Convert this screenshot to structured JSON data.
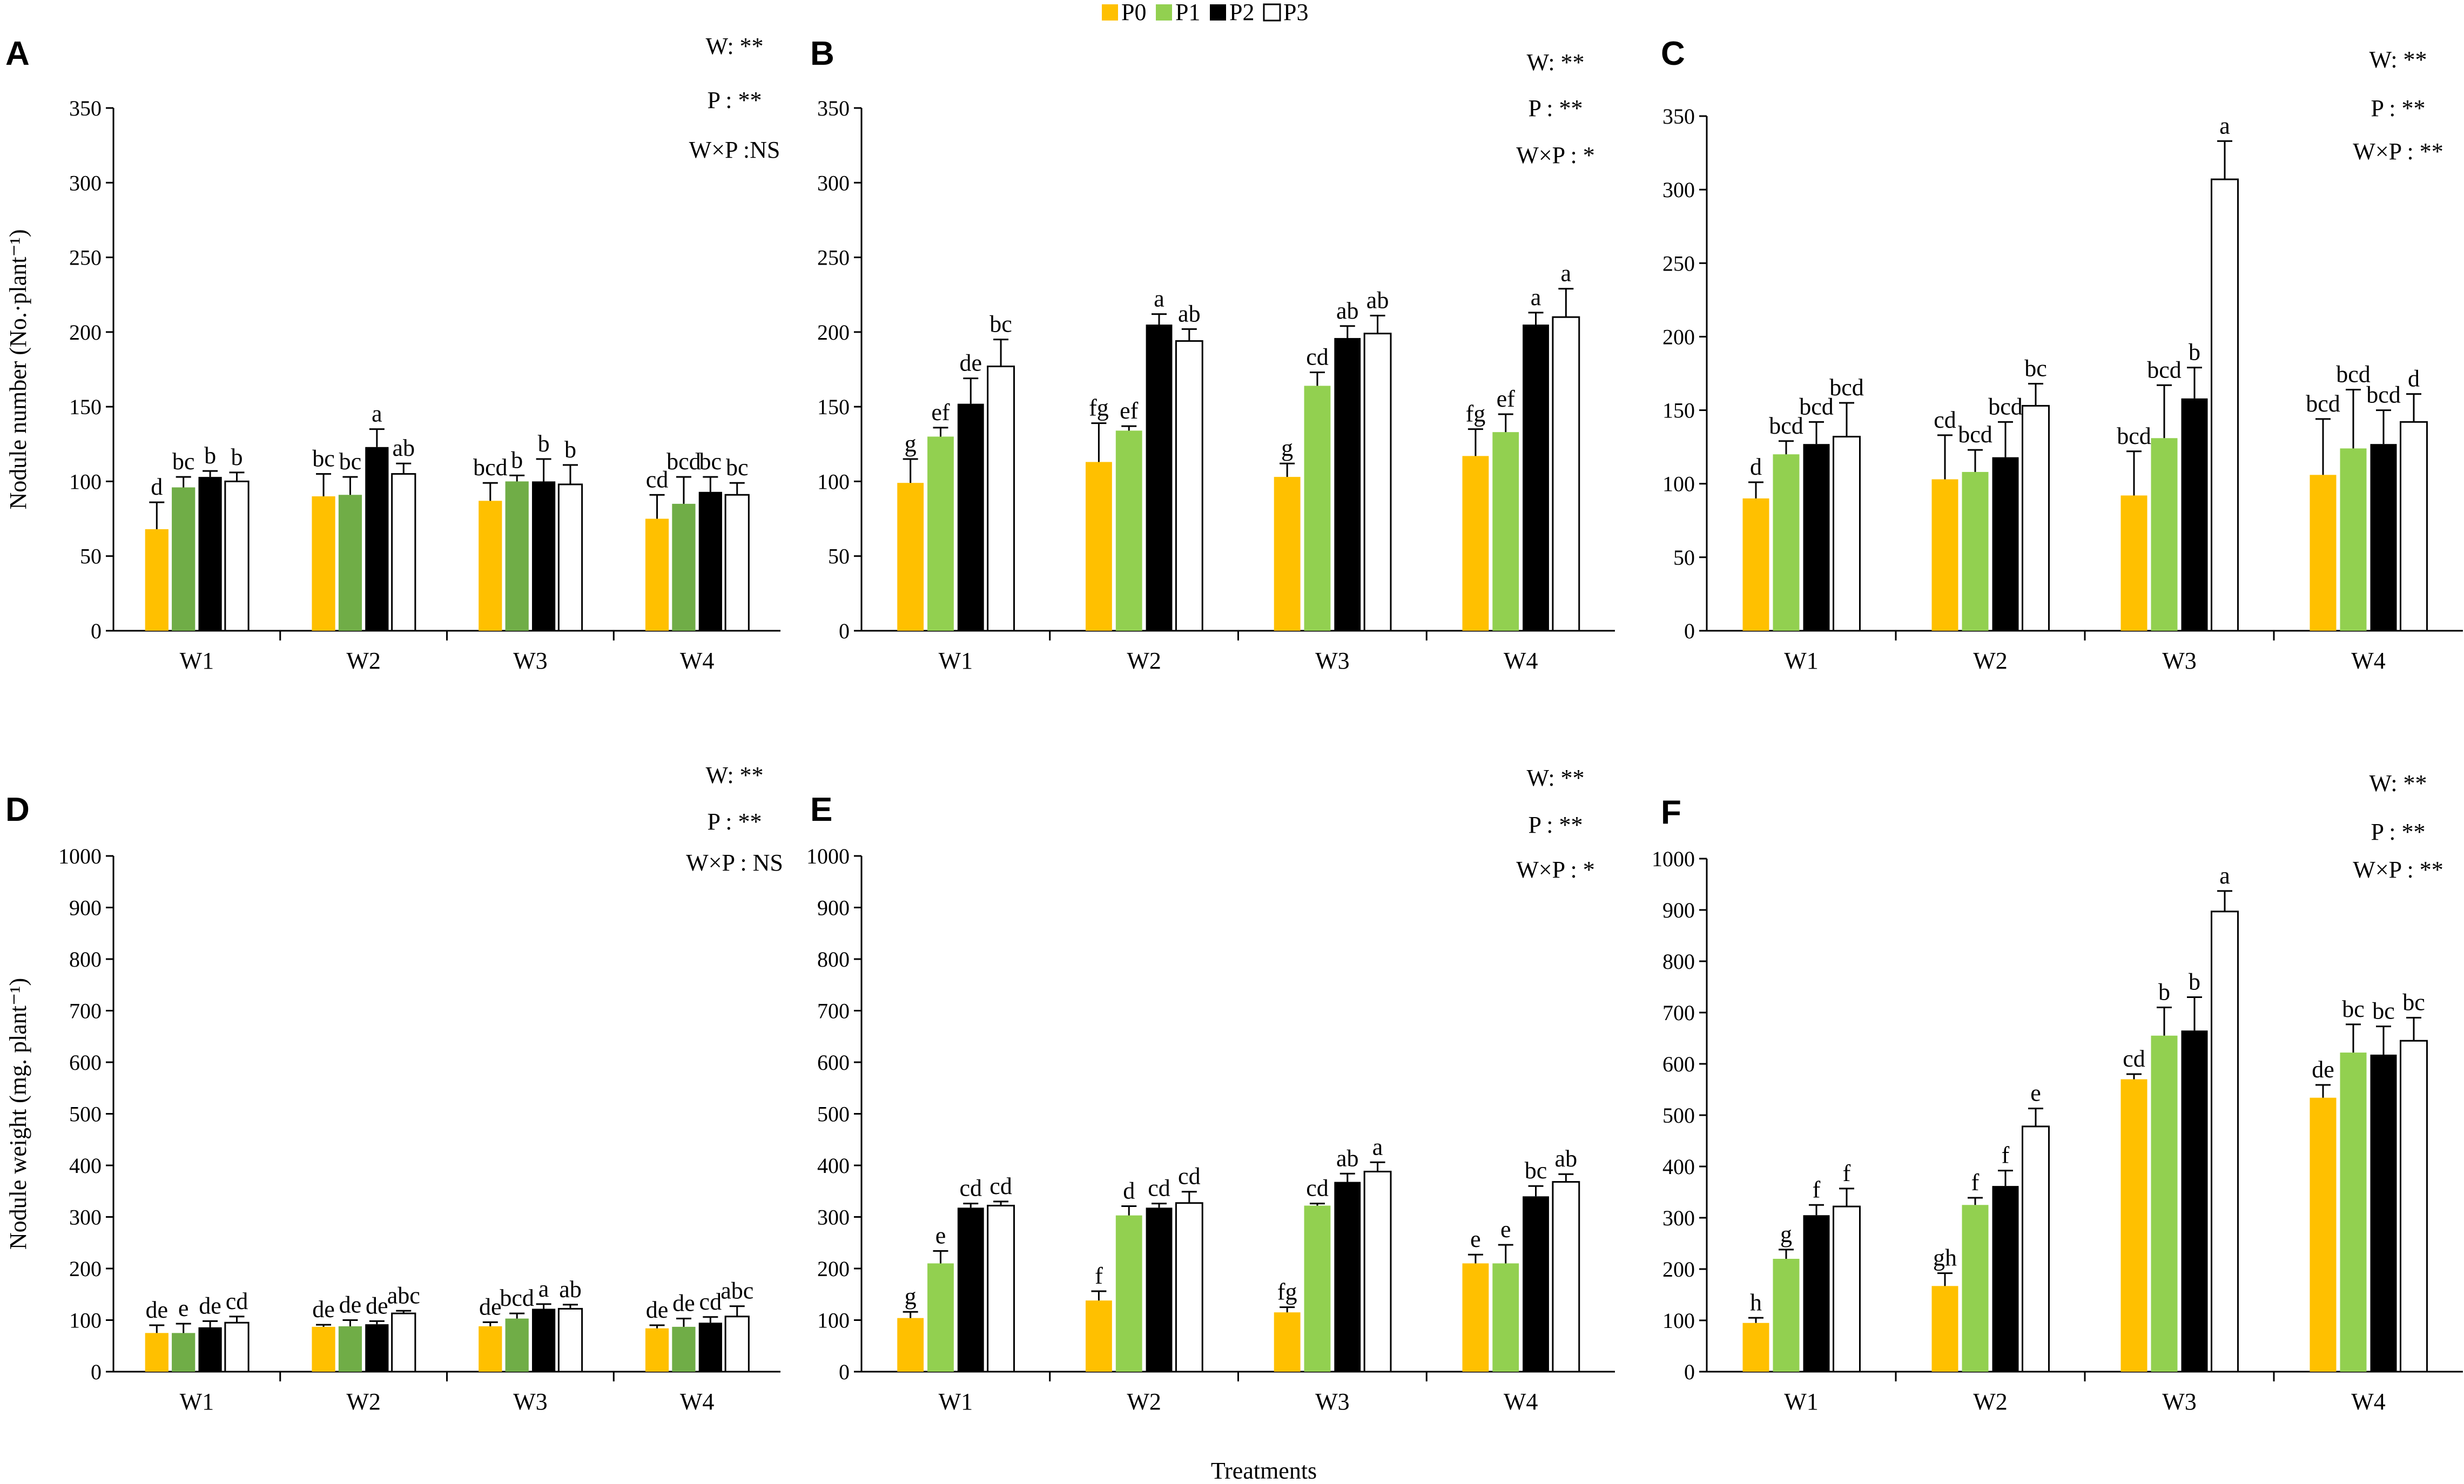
{
  "legend": [
    {
      "label": "P0",
      "color": "#FFC000"
    },
    {
      "label": "P1",
      "color": "#92D050"
    },
    {
      "label": "P2",
      "color": "#000000"
    },
    {
      "label": "P3",
      "color": "#FFFFFF"
    }
  ],
  "x_axis_title": "Treatments",
  "chart_data": [
    {
      "panel": "A",
      "type": "bar",
      "ylabel": "Nodule number (No.·plant⁻¹)",
      "ylim": [
        0,
        350
      ],
      "yticks": [
        0,
        50,
        100,
        150,
        200,
        250,
        300,
        350
      ],
      "categories": [
        "W1",
        "W2",
        "W3",
        "W4"
      ],
      "p1_color": "#70AD47",
      "series": [
        {
          "name": "P0",
          "values": [
            68,
            90,
            87,
            75
          ],
          "errors": [
            18,
            15,
            12,
            16
          ],
          "letters": [
            "d",
            "bc",
            "bcd",
            "cd"
          ]
        },
        {
          "name": "P1",
          "values": [
            96,
            91,
            100,
            85
          ],
          "errors": [
            7,
            12,
            4,
            18
          ],
          "letters": [
            "bc",
            "bc",
            "b",
            "bcd"
          ]
        },
        {
          "name": "P2",
          "values": [
            103,
            123,
            100,
            93
          ],
          "errors": [
            4,
            12,
            15,
            10
          ],
          "letters": [
            "b",
            "a",
            "b",
            "bc"
          ]
        },
        {
          "name": "P3",
          "values": [
            100,
            105,
            98,
            91
          ],
          "errors": [
            6,
            7,
            13,
            8
          ],
          "letters": [
            "b",
            "ab",
            "b",
            "bc"
          ]
        }
      ],
      "significance": [
        "W: **",
        "P : **",
        "W×P :NS"
      ]
    },
    {
      "panel": "B",
      "type": "bar",
      "ylabel": "",
      "ylim": [
        0,
        350
      ],
      "yticks": [
        0,
        50,
        100,
        150,
        200,
        250,
        300,
        350
      ],
      "categories": [
        "W1",
        "W2",
        "W3",
        "W4"
      ],
      "p1_color": "#92D050",
      "series": [
        {
          "name": "P0",
          "values": [
            99,
            113,
            103,
            117
          ],
          "errors": [
            16,
            26,
            9,
            18
          ],
          "letters": [
            "g",
            "fg",
            "g",
            "fg"
          ]
        },
        {
          "name": "P1",
          "values": [
            130,
            134,
            164,
            133
          ],
          "errors": [
            6,
            3,
            9,
            12
          ],
          "letters": [
            "ef",
            "ef",
            "cd",
            "ef"
          ]
        },
        {
          "name": "P2",
          "values": [
            152,
            205,
            196,
            205
          ],
          "errors": [
            17,
            7,
            8,
            8
          ],
          "letters": [
            "de",
            "a",
            "ab",
            "a"
          ]
        },
        {
          "name": "P3",
          "values": [
            177,
            194,
            199,
            210
          ],
          "errors": [
            18,
            8,
            12,
            19
          ],
          "letters": [
            "bc",
            "ab",
            "ab",
            "a"
          ]
        }
      ],
      "significance": [
        "W: **",
        "P : **",
        "W×P : *"
      ]
    },
    {
      "panel": "C",
      "type": "bar",
      "ylabel": "",
      "ylim": [
        0,
        350
      ],
      "yticks": [
        0,
        50,
        100,
        150,
        200,
        250,
        300,
        350
      ],
      "categories": [
        "W1",
        "W2",
        "W3",
        "W4"
      ],
      "p1_color": "#92D050",
      "series": [
        {
          "name": "P0",
          "values": [
            90,
            103,
            92,
            106
          ],
          "errors": [
            11,
            30,
            30,
            38
          ],
          "letters": [
            "d",
            "cd",
            "bcd",
            "bcd"
          ]
        },
        {
          "name": "P1",
          "values": [
            120,
            108,
            131,
            124
          ],
          "errors": [
            9,
            15,
            36,
            40
          ],
          "letters": [
            "bcd",
            "bcd",
            "bcd",
            "bcd"
          ]
        },
        {
          "name": "P2",
          "values": [
            127,
            118,
            158,
            127
          ],
          "errors": [
            15,
            24,
            21,
            23
          ],
          "letters": [
            "bcd",
            "bcd",
            "b",
            "bcd"
          ]
        },
        {
          "name": "P3",
          "values": [
            132,
            153,
            307,
            142
          ],
          "errors": [
            23,
            15,
            26,
            19
          ],
          "letters": [
            "bcd",
            "bc",
            "a",
            "d"
          ]
        }
      ],
      "significance": [
        "W: **",
        "P : **",
        "W×P : **"
      ]
    },
    {
      "panel": "D",
      "type": "bar",
      "ylabel": "Nodule weight (mg. plant⁻¹)",
      "ylim": [
        0,
        1000
      ],
      "yticks": [
        0,
        100,
        200,
        300,
        400,
        500,
        600,
        700,
        800,
        900,
        1000
      ],
      "categories": [
        "W1",
        "W2",
        "W3",
        "W4"
      ],
      "p1_color": "#70AD47",
      "series": [
        {
          "name": "P0",
          "values": [
            75,
            87,
            88,
            84
          ],
          "errors": [
            15,
            4,
            8,
            6
          ],
          "letters": [
            "de",
            "de",
            "de",
            "de"
          ]
        },
        {
          "name": "P1",
          "values": [
            75,
            88,
            103,
            87
          ],
          "errors": [
            18,
            12,
            10,
            16
          ],
          "letters": [
            "e",
            "de",
            "bcd",
            "de"
          ]
        },
        {
          "name": "P2",
          "values": [
            86,
            92,
            122,
            95
          ],
          "errors": [
            12,
            6,
            9,
            11
          ],
          "letters": [
            "de",
            "de",
            "a",
            "cd"
          ]
        },
        {
          "name": "P3",
          "values": [
            95,
            113,
            122,
            107
          ],
          "errors": [
            12,
            5,
            8,
            20
          ],
          "letters": [
            "cd",
            "abc",
            "ab",
            "abc"
          ]
        }
      ],
      "significance": [
        "W: **",
        "P : **",
        "W×P : NS"
      ]
    },
    {
      "panel": "E",
      "type": "bar",
      "ylabel": "",
      "ylim": [
        0,
        1000
      ],
      "yticks": [
        0,
        100,
        200,
        300,
        400,
        500,
        600,
        700,
        800,
        900,
        1000
      ],
      "categories": [
        "W1",
        "W2",
        "W3",
        "W4"
      ],
      "p1_color": "#92D050",
      "series": [
        {
          "name": "P0",
          "values": [
            104,
            138,
            115,
            210
          ],
          "errors": [
            12,
            18,
            10,
            17
          ],
          "letters": [
            "g",
            "f",
            "fg",
            "e"
          ]
        },
        {
          "name": "P1",
          "values": [
            210,
            303,
            322,
            210
          ],
          "errors": [
            24,
            18,
            4,
            36
          ],
          "letters": [
            "e",
            "d",
            "cd",
            "e"
          ]
        },
        {
          "name": "P2",
          "values": [
            318,
            318,
            368,
            340
          ],
          "errors": [
            8,
            8,
            16,
            20
          ],
          "letters": [
            "cd",
            "cd",
            "ab",
            "bc"
          ]
        },
        {
          "name": "P3",
          "values": [
            322,
            327,
            388,
            368
          ],
          "errors": [
            8,
            22,
            18,
            15
          ],
          "letters": [
            "cd",
            "cd",
            "a",
            "ab"
          ]
        }
      ],
      "significance": [
        "W: **",
        "P : **",
        "W×P : *"
      ]
    },
    {
      "panel": "F",
      "type": "bar",
      "ylabel": "",
      "ylim": [
        0,
        1000
      ],
      "yticks": [
        0,
        100,
        200,
        300,
        400,
        500,
        600,
        700,
        800,
        900,
        1000
      ],
      "categories": [
        "W1",
        "W2",
        "W3",
        "W4"
      ],
      "p1_color": "#92D050",
      "series": [
        {
          "name": "P0",
          "values": [
            95,
            167,
            570,
            534
          ],
          "errors": [
            10,
            25,
            10,
            25
          ],
          "letters": [
            "h",
            "gh",
            "cd",
            "de"
          ]
        },
        {
          "name": "P1",
          "values": [
            220,
            325,
            655,
            622
          ],
          "errors": [
            18,
            14,
            55,
            55
          ],
          "letters": [
            "g",
            "f",
            "b",
            "bc"
          ]
        },
        {
          "name": "P2",
          "values": [
            305,
            362,
            665,
            618
          ],
          "errors": [
            20,
            30,
            65,
            55
          ],
          "letters": [
            "f",
            "f",
            "b",
            "bc"
          ]
        },
        {
          "name": "P3",
          "values": [
            322,
            478,
            897,
            645
          ],
          "errors": [
            35,
            35,
            40,
            45
          ],
          "letters": [
            "f",
            "e",
            "a",
            "bc"
          ]
        }
      ],
      "significance": [
        "W: **",
        "P : **",
        "W×P : **"
      ]
    }
  ]
}
